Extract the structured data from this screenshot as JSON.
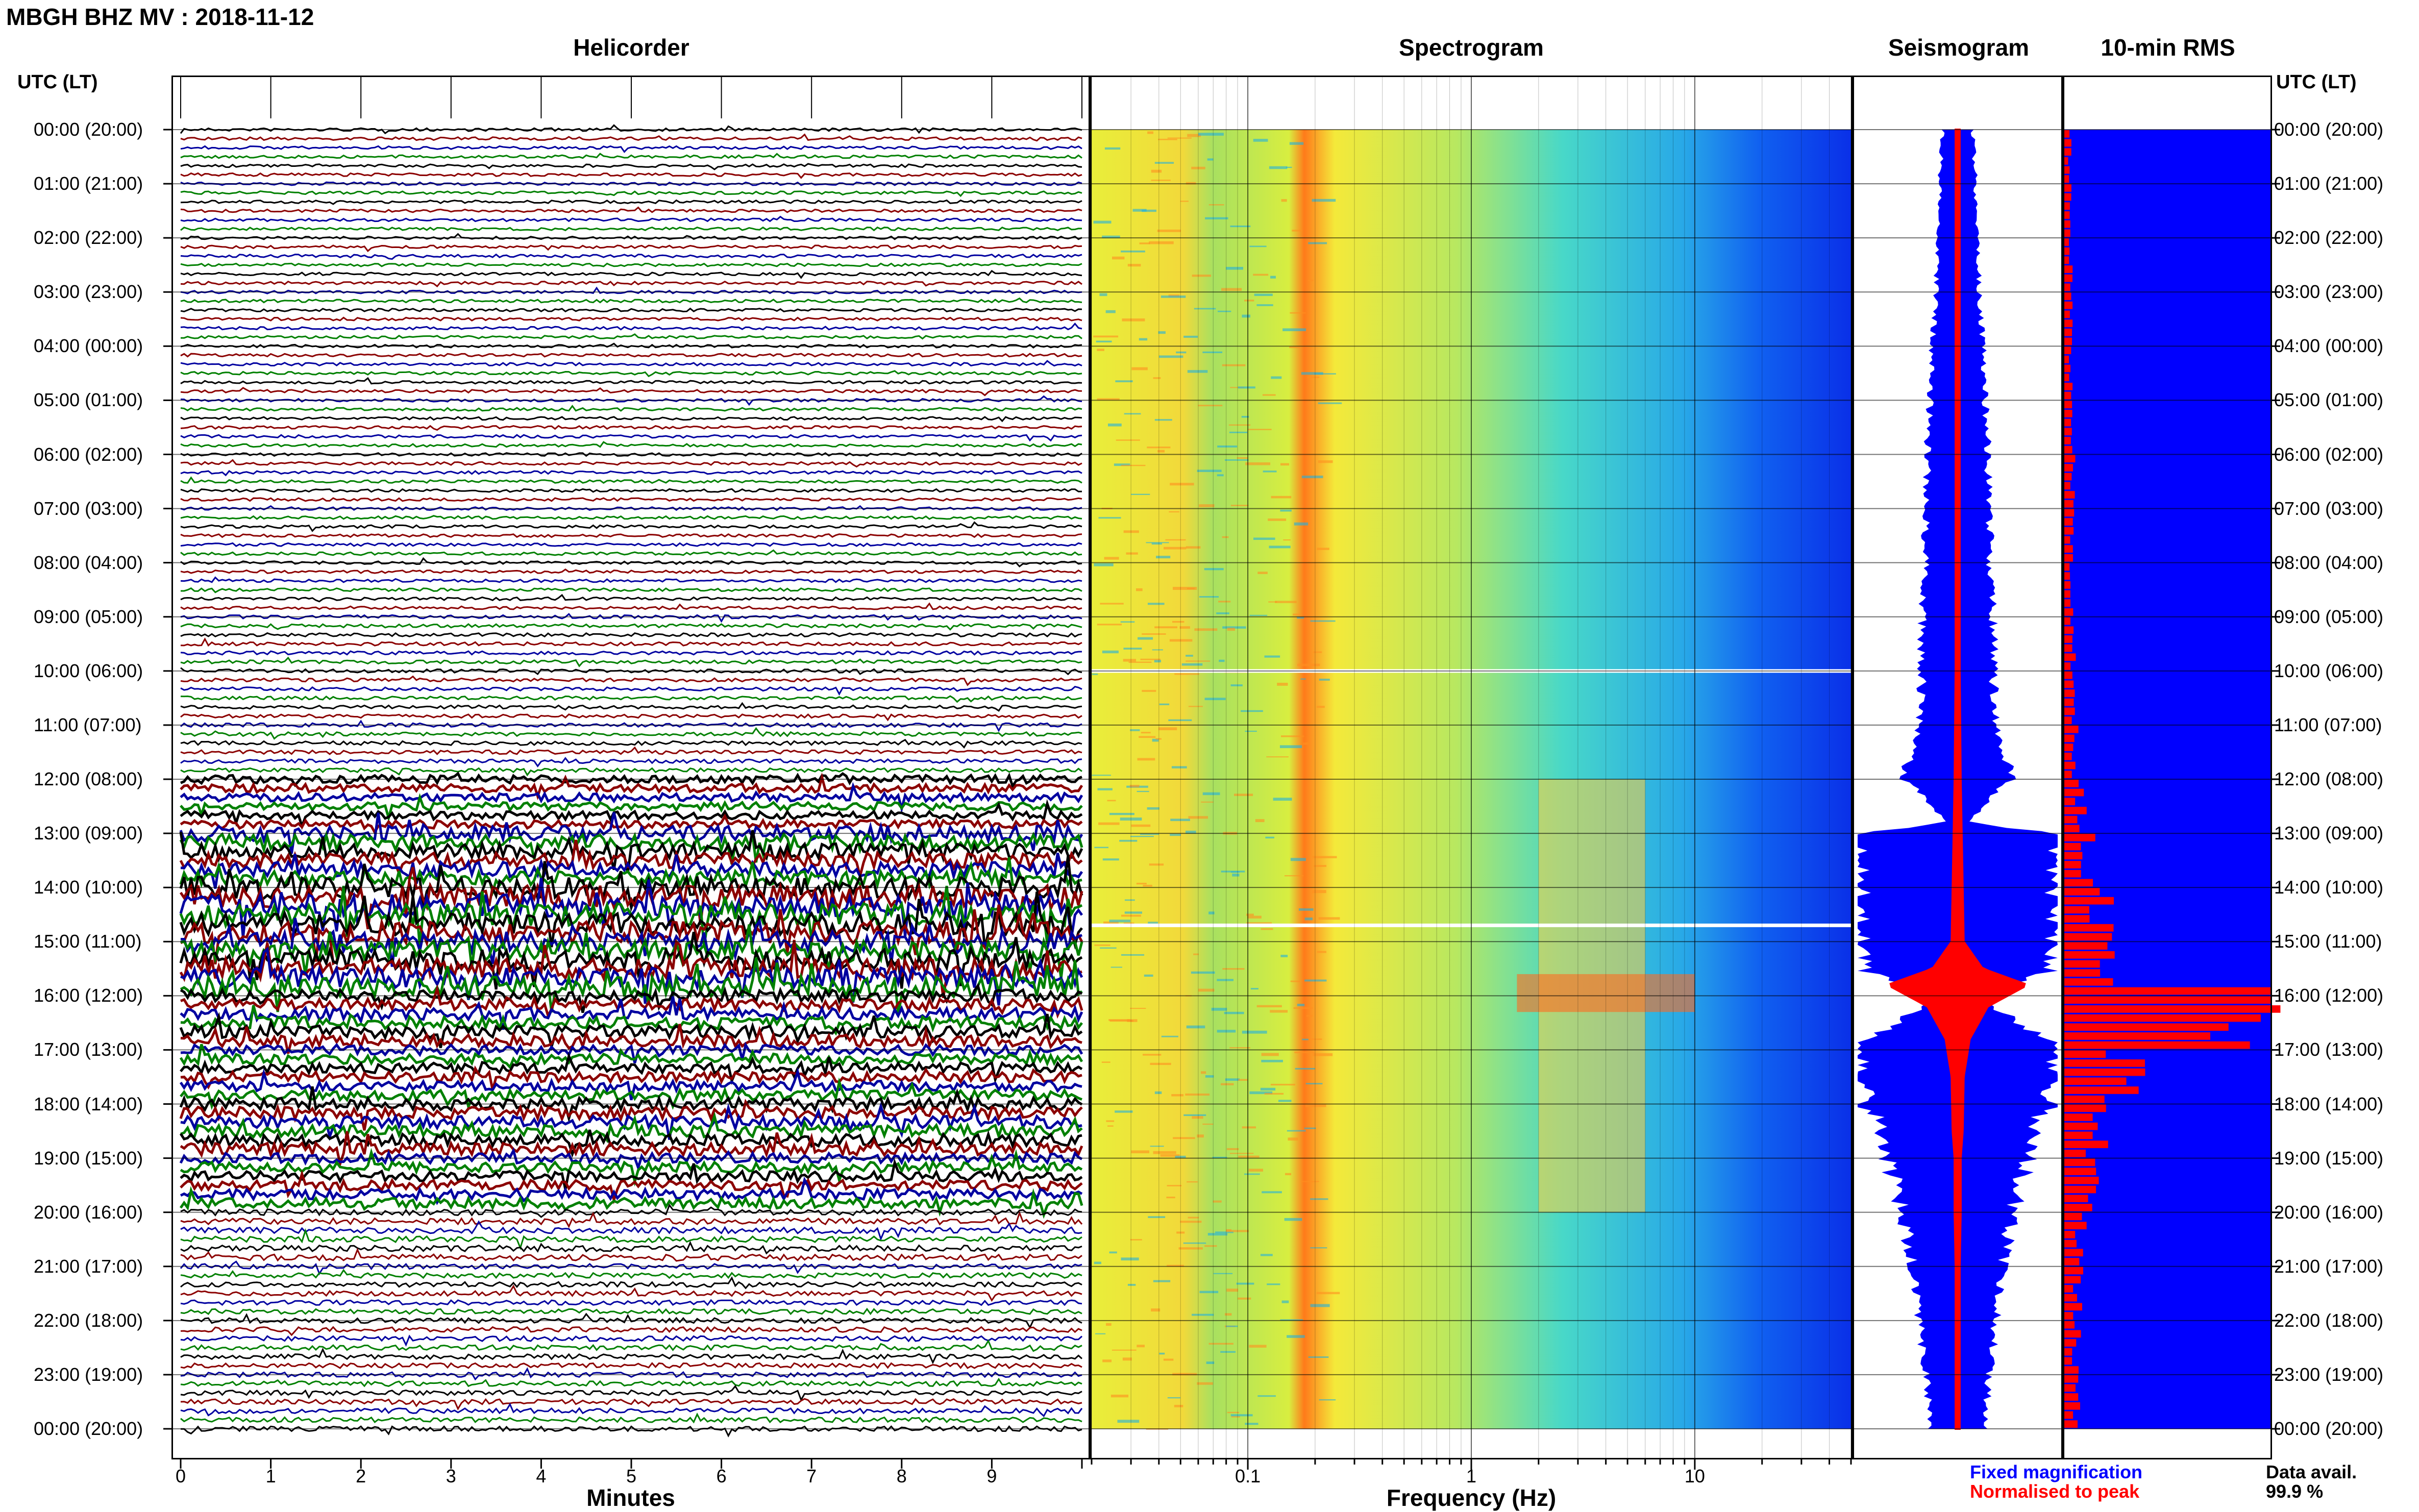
{
  "header": {
    "station": "MBGH BHZ MV : 2018-11-12"
  },
  "panels": {
    "helicorder": "Helicorder",
    "spectrogram": "Spectrogram",
    "seismogram": "Seismogram",
    "rms": "10-min RMS"
  },
  "time_axis": {
    "left_label": "UTC (LT)",
    "right_label": "UTC (LT)",
    "ticks": [
      "00:00 (20:00)",
      "01:00 (21:00)",
      "02:00 (22:00)",
      "03:00 (23:00)",
      "04:00 (00:00)",
      "05:00 (01:00)",
      "06:00 (02:00)",
      "07:00 (03:00)",
      "08:00 (04:00)",
      "09:00 (05:00)",
      "10:00 (06:00)",
      "11:00 (07:00)",
      "12:00 (08:00)",
      "13:00 (09:00)",
      "14:00 (10:00)",
      "15:00 (11:00)",
      "16:00 (12:00)",
      "17:00 (13:00)",
      "18:00 (14:00)",
      "19:00 (15:00)",
      "20:00 (16:00)",
      "21:00 (17:00)",
      "22:00 (18:00)",
      "23:00 (19:00)",
      "00:00 (20:00)"
    ]
  },
  "helicorder_axis": {
    "label": "Minutes",
    "ticks": [
      "0",
      "1",
      "2",
      "3",
      "4",
      "5",
      "6",
      "7",
      "8",
      "9"
    ]
  },
  "spectrogram_axis": {
    "label": "Frequency (Hz)",
    "ticks": [
      "0.1",
      "1",
      "10"
    ]
  },
  "legend": {
    "fixed": "Fixed magnification",
    "normalised": "Normalised to peak"
  },
  "data_availability": {
    "label": "Data avail.",
    "value": "99.9 %"
  },
  "colors": {
    "fixed": "#0000ff",
    "normalised": "#ff0000",
    "trace_cycle": [
      "#000000",
      "#8b0000",
      "#0000a0",
      "#008000"
    ]
  },
  "chart_data": [
    {
      "type": "line",
      "title": "Helicorder",
      "xlabel": "Minutes",
      "xlim": [
        0,
        10
      ],
      "rows": 144,
      "y": [
        "00:00",
        "24:00"
      ],
      "activity_by_hour": [
        0.3,
        0.3,
        0.3,
        0.3,
        0.3,
        0.3,
        0.3,
        0.3,
        0.3,
        0.35,
        0.35,
        0.4,
        0.8,
        1.5,
        2.2,
        2.0,
        1.2,
        1.0,
        1.2,
        1.0,
        0.6,
        0.5,
        0.5,
        0.5
      ]
    },
    {
      "type": "heatmap",
      "title": "Spectrogram",
      "xlabel": "Frequency (Hz)",
      "xscale": "log",
      "xlim": [
        0.02,
        50
      ],
      "y": [
        "00:00",
        "24:00"
      ],
      "dominant_band_hz": 0.2,
      "tremor_band_hz": [
        2,
        6
      ],
      "tremor_hours": [
        12,
        20
      ],
      "data_gaps_hours": [
        10.0,
        14.7
      ]
    },
    {
      "type": "area",
      "title": "Seismogram",
      "series": [
        {
          "name": "Fixed magnification",
          "hours": [
            0,
            1,
            2,
            3,
            4,
            5,
            6,
            7,
            8,
            9,
            10,
            11,
            12,
            12.8,
            13,
            14,
            15,
            15.5,
            16,
            16.5,
            17,
            18,
            19,
            20,
            21,
            22,
            23,
            24
          ],
          "amplitude": [
            0.15,
            0.18,
            0.2,
            0.22,
            0.25,
            0.28,
            0.3,
            0.32,
            0.33,
            0.35,
            0.36,
            0.38,
            0.55,
            0.1,
            1.0,
            1.0,
            1.0,
            1.0,
            0.2,
            0.6,
            1.0,
            0.9,
            0.7,
            0.55,
            0.45,
            0.38,
            0.32,
            0.28
          ]
        },
        {
          "name": "Normalised to peak",
          "hours": [
            0,
            2,
            4,
            6,
            8,
            10,
            12,
            13,
            14,
            15,
            15.5,
            15.8,
            16.2,
            16.8,
            17.5,
            18.5,
            19,
            20,
            21,
            22,
            23,
            24
          ],
          "amplitude": [
            0.02,
            0.02,
            0.02,
            0.02,
            0.02,
            0.02,
            0.03,
            0.04,
            0.05,
            0.06,
            0.25,
            0.7,
            0.3,
            0.12,
            0.06,
            0.05,
            0.03,
            0.03,
            0.02,
            0.02,
            0.02,
            0.02
          ]
        }
      ]
    },
    {
      "type": "bar",
      "title": "10-min RMS",
      "orientation": "horizontal",
      "bins_per_hour": 6,
      "hourly_level": [
        0.03,
        0.03,
        0.03,
        0.03,
        0.03,
        0.03,
        0.04,
        0.04,
        0.04,
        0.04,
        0.04,
        0.05,
        0.08,
        0.12,
        0.18,
        0.22,
        1.0,
        0.3,
        0.16,
        0.12,
        0.08,
        0.07,
        0.06,
        0.06
      ],
      "peak_hour": 15.9
    }
  ]
}
